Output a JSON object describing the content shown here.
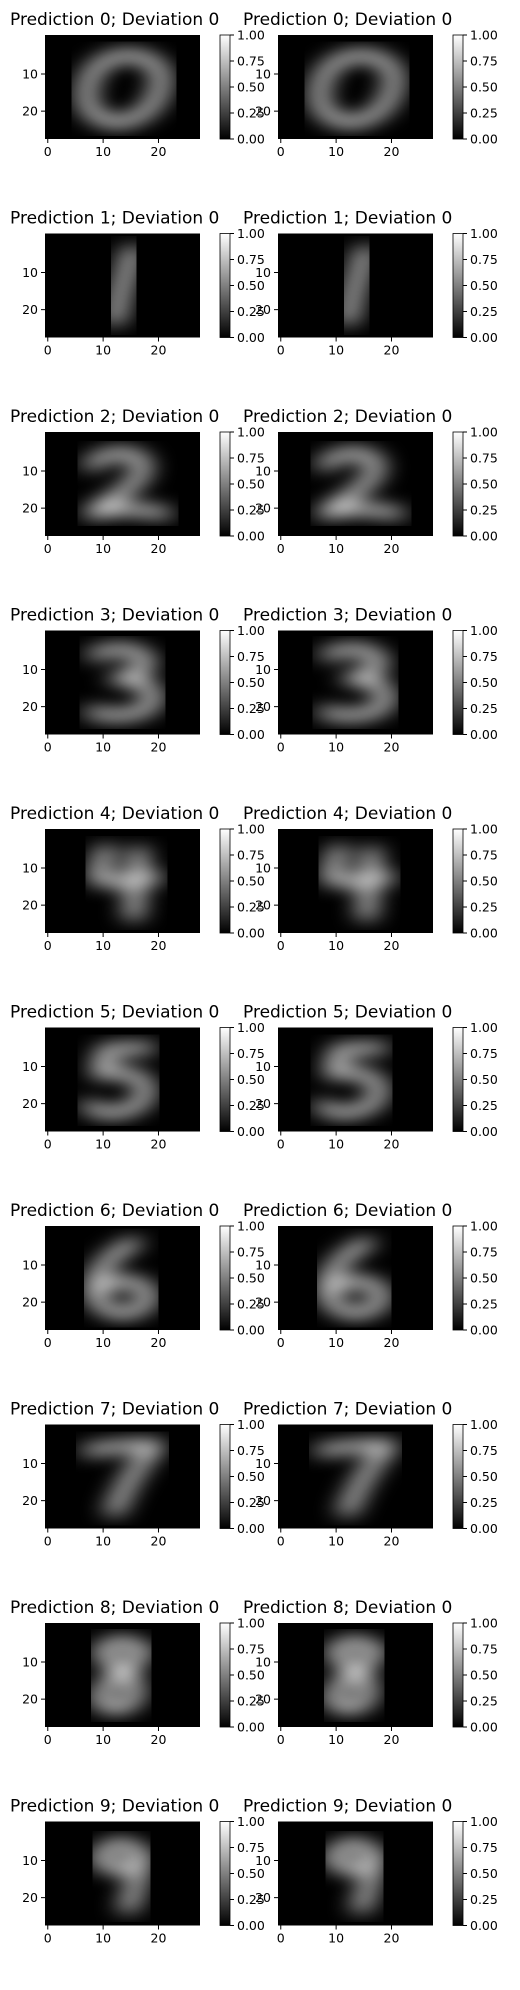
{
  "figure": {
    "rows": 10,
    "cols": 2,
    "background": "#ffffff"
  },
  "chart_data": {
    "type": "heatmap",
    "colormap": "gray",
    "image_size": [
      28,
      28
    ],
    "x_ticks": [
      0,
      10,
      20
    ],
    "y_ticks": [
      10,
      20
    ],
    "colorbar": {
      "range": [
        0.0,
        1.0
      ],
      "ticks": [
        "0.00",
        "0.25",
        "0.50",
        "0.75",
        "1.00"
      ]
    },
    "panels": [
      {
        "title": "Prediction 0; Deviation 0",
        "prediction": 0,
        "deviation": 0
      },
      {
        "title": "Prediction 0; Deviation 0",
        "prediction": 0,
        "deviation": 0
      },
      {
        "title": "Prediction 1; Deviation 0",
        "prediction": 1,
        "deviation": 0
      },
      {
        "title": "Prediction 1; Deviation 0",
        "prediction": 1,
        "deviation": 0
      },
      {
        "title": "Prediction 2; Deviation 0",
        "prediction": 2,
        "deviation": 0
      },
      {
        "title": "Prediction 2; Deviation 0",
        "prediction": 2,
        "deviation": 0
      },
      {
        "title": "Prediction 3; Deviation 0",
        "prediction": 3,
        "deviation": 0
      },
      {
        "title": "Prediction 3; Deviation 0",
        "prediction": 3,
        "deviation": 0
      },
      {
        "title": "Prediction 4; Deviation 0",
        "prediction": 4,
        "deviation": 0
      },
      {
        "title": "Prediction 4; Deviation 0",
        "prediction": 4,
        "deviation": 0
      },
      {
        "title": "Prediction 5; Deviation 0",
        "prediction": 5,
        "deviation": 0
      },
      {
        "title": "Prediction 5; Deviation 0",
        "prediction": 5,
        "deviation": 0
      },
      {
        "title": "Prediction 6; Deviation 0",
        "prediction": 6,
        "deviation": 0
      },
      {
        "title": "Prediction 6; Deviation 0",
        "prediction": 6,
        "deviation": 0
      },
      {
        "title": "Prediction 7; Deviation 0",
        "prediction": 7,
        "deviation": 0
      },
      {
        "title": "Prediction 7; Deviation 0",
        "prediction": 7,
        "deviation": 0
      },
      {
        "title": "Prediction 8; Deviation 0",
        "prediction": 8,
        "deviation": 0
      },
      {
        "title": "Prediction 8; Deviation 0",
        "prediction": 8,
        "deviation": 0
      },
      {
        "title": "Prediction 9; Deviation 0",
        "prediction": 9,
        "deviation": 0
      },
      {
        "title": "Prediction 9; Deviation 0",
        "prediction": 9,
        "deviation": 0
      }
    ]
  }
}
